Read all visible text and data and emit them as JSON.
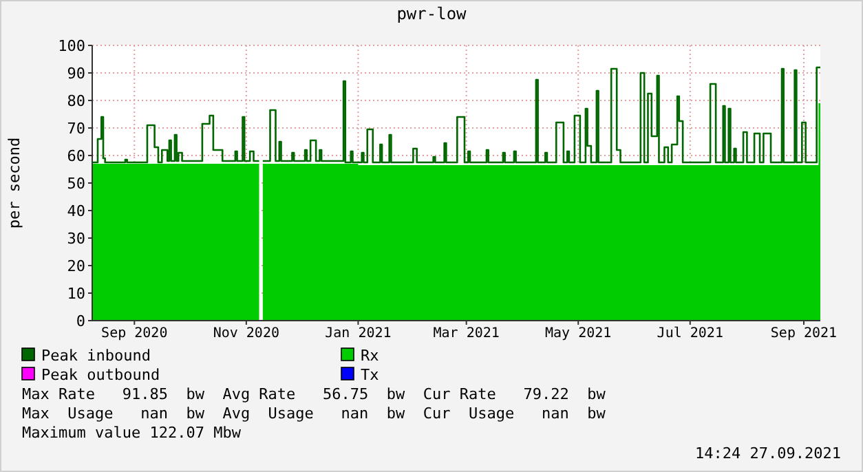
{
  "chart_data": {
    "type": "area",
    "title": "pwr-low",
    "ylabel": "per second",
    "xlim": [
      "2020-08-09",
      "2021-09-10"
    ],
    "xticks": [
      {
        "value": "2020-09-01",
        "label": "Sep 2020"
      },
      {
        "value": "2020-11-01",
        "label": "Nov 2020"
      },
      {
        "value": "2021-01-01",
        "label": "Jan 2021"
      },
      {
        "value": "2021-03-01",
        "label": "Mar 2021"
      },
      {
        "value": "2021-05-01",
        "label": "May 2021"
      },
      {
        "value": "2021-07-01",
        "label": "Jul 2021"
      },
      {
        "value": "2021-09-01",
        "label": "Sep 2021"
      }
    ],
    "ylim": [
      0,
      100
    ],
    "yticks": [
      0,
      10,
      20,
      30,
      40,
      50,
      60,
      70,
      80,
      90,
      100
    ],
    "grid": true,
    "legend": "bottom",
    "series": [
      {
        "name": "Peak inbound",
        "type": "step",
        "color": "#006600",
        "x": [
          "2020-08-09",
          "2020-08-12",
          "2020-08-14",
          "2020-08-15",
          "2020-08-16",
          "2020-08-27",
          "2020-08-28",
          "2020-09-08",
          "2020-09-12",
          "2020-09-14",
          "2020-09-16",
          "2020-09-19",
          "2020-09-20",
          "2020-09-21",
          "2020-09-23",
          "2020-09-24",
          "2020-09-25",
          "2020-09-27",
          "2020-10-08",
          "2020-10-12",
          "2020-10-14",
          "2020-10-19",
          "2020-10-26",
          "2020-10-27",
          "2020-10-30",
          "2020-10-31",
          "2020-11-03",
          "2020-11-05",
          "2020-11-08",
          "2020-11-09",
          "2020-11-10",
          "2020-11-14",
          "2020-11-17",
          "2020-11-19",
          "2020-11-20",
          "2020-11-26",
          "2020-11-27",
          "2020-12-03",
          "2020-12-04",
          "2020-12-06",
          "2020-12-09",
          "2020-12-11",
          "2020-12-12",
          "2020-12-24",
          "2020-12-25",
          "2020-12-28",
          "2020-12-29",
          "2021-01-03",
          "2021-01-04",
          "2021-01-06",
          "2021-01-09",
          "2021-01-13",
          "2021-01-14",
          "2021-01-18",
          "2021-01-19",
          "2021-01-31",
          "2021-02-02",
          "2021-02-11",
          "2021-02-12",
          "2021-02-17",
          "2021-02-18",
          "2021-02-24",
          "2021-02-28",
          "2021-03-02",
          "2021-03-03",
          "2021-03-12",
          "2021-03-13",
          "2021-03-21",
          "2021-03-22",
          "2021-03-27",
          "2021-03-28",
          "2021-04-08",
          "2021-04-09",
          "2021-04-13",
          "2021-04-14",
          "2021-04-19",
          "2021-04-23",
          "2021-04-25",
          "2021-04-26",
          "2021-04-29",
          "2021-05-02",
          "2021-05-05",
          "2021-05-06",
          "2021-05-08",
          "2021-05-11",
          "2021-05-12",
          "2021-05-19",
          "2021-05-22",
          "2021-05-24",
          "2021-06-04",
          "2021-06-06",
          "2021-06-08",
          "2021-06-10",
          "2021-06-13",
          "2021-06-14",
          "2021-06-17",
          "2021-06-19",
          "2021-06-21",
          "2021-06-24",
          "2021-06-25",
          "2021-06-27",
          "2021-07-12",
          "2021-07-15",
          "2021-07-19",
          "2021-07-20",
          "2021-07-22",
          "2021-07-23",
          "2021-07-25",
          "2021-07-26",
          "2021-07-30",
          "2021-08-01",
          "2021-08-05",
          "2021-08-08",
          "2021-08-10",
          "2021-08-14",
          "2021-08-20",
          "2021-08-21",
          "2021-08-27",
          "2021-08-28",
          "2021-08-31",
          "2021-09-02",
          "2021-09-08",
          "2021-09-10"
        ],
        "values": [
          57.5,
          66,
          74,
          59,
          57.5,
          58.5,
          57.5,
          71,
          63,
          57.5,
          62,
          58,
          65.5,
          58,
          67.5,
          58,
          61,
          58,
          71.5,
          74.5,
          62,
          58,
          61.5,
          58,
          74,
          58,
          61.5,
          58,
          58,
          null,
          58,
          76.5,
          58,
          65,
          58,
          61,
          58,
          62,
          58,
          65.5,
          58,
          62,
          58,
          87,
          57.5,
          61.5,
          57.5,
          61,
          57.5,
          69.5,
          57.5,
          64,
          57.5,
          67.5,
          57.5,
          62.5,
          57.5,
          59.5,
          57.5,
          64.5,
          57.5,
          74,
          57.5,
          61.5,
          57.5,
          62,
          57.5,
          61,
          57.5,
          61.5,
          57.5,
          87.5,
          57.5,
          61,
          57.5,
          72,
          57.5,
          61.5,
          57.5,
          74.5,
          57.5,
          77,
          63.5,
          57.5,
          83.5,
          57.5,
          91.5,
          62,
          57.5,
          90,
          57.5,
          82.5,
          67,
          89,
          57.5,
          63,
          57.5,
          64,
          81.5,
          72.5,
          57.5,
          86,
          57.5,
          78,
          57.5,
          77,
          57.5,
          62.5,
          57.5,
          68.5,
          57.5,
          68,
          57.5,
          68,
          57.5,
          91.5,
          57.5,
          91,
          57.5,
          72,
          57.5,
          92,
          92
        ]
      },
      {
        "name": "Rx",
        "color": "#00cc00",
        "x": [
          "2020-08-09",
          "2020-11-08",
          "2020-11-09",
          "2020-11-10",
          "2021-01-01",
          "2021-09-09",
          "2021-09-10"
        ],
        "values": [
          57,
          57,
          null,
          57,
          56.5,
          79,
          79
        ]
      },
      {
        "name": "Peak outbound",
        "type": "line",
        "color": "#ff00ff"
      },
      {
        "name": "Tx",
        "type": "line",
        "color": "#0000ff"
      }
    ],
    "annotations": [
      "Max Rate   91.85  bw  Avg Rate   56.75  bw  Cur Rate   79.22  bw",
      "Max  Usage   nan  bw  Avg  Usage   nan  bw  Cur  Usage   nan  bw",
      "Maximum value 122.07 Mbw",
      "14:24 27.09.2021"
    ]
  }
}
